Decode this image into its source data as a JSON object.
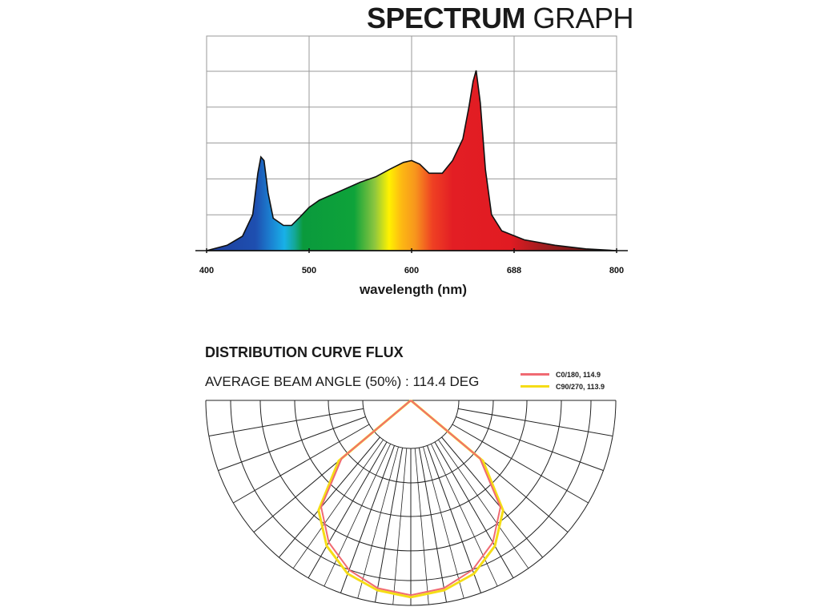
{
  "spectrum": {
    "title_bold": "SPECTRUM",
    "title_light": "GRAPH",
    "xlabel": "wavelength (nm)"
  },
  "distribution": {
    "title": "DISTRIBUTION CURVE FLUX",
    "subtitle": "AVERAGE BEAM ANGLE  (50%) : 114.4 DEG",
    "legend": [
      {
        "label": "C0/180, 114.9",
        "color": "#f06a72"
      },
      {
        "label": "C90/270, 113.9",
        "color": "#f5dd16"
      }
    ]
  },
  "chart_data": [
    {
      "type": "area",
      "title": "SPECTRUM GRAPH",
      "xlabel": "wavelength (nm)",
      "ylabel": "",
      "x_tick_labels": [
        "400",
        "500",
        "600",
        "688",
        "800"
      ],
      "xlim": [
        400,
        800
      ],
      "ylim": [
        0,
        1
      ],
      "grid": true,
      "series": [
        {
          "x": [
            400,
            420,
            435,
            445,
            450,
            453,
            456,
            460,
            465,
            475,
            483,
            490,
            500,
            510,
            530,
            550,
            565,
            578,
            592,
            600,
            608,
            617,
            630,
            640,
            650,
            656,
            660,
            663,
            667,
            672,
            678,
            688,
            710,
            740,
            770,
            800
          ],
          "values": [
            0.0,
            0.03,
            0.08,
            0.2,
            0.43,
            0.52,
            0.5,
            0.32,
            0.18,
            0.14,
            0.14,
            0.18,
            0.24,
            0.28,
            0.33,
            0.38,
            0.41,
            0.45,
            0.49,
            0.5,
            0.48,
            0.43,
            0.43,
            0.5,
            0.62,
            0.8,
            0.94,
            1.0,
            0.82,
            0.45,
            0.2,
            0.11,
            0.06,
            0.03,
            0.01,
            0.0
          ]
        }
      ]
    },
    {
      "type": "polar",
      "title": "DISTRIBUTION CURVE FLUX",
      "subtitle": "AVERAGE BEAM ANGLE  (50%) : 114.4 DEG",
      "grid": true,
      "angular_grid_step_deg": 10,
      "series": [
        {
          "name": "C0/180, 114.9",
          "color": "#f06a72",
          "angles_deg": [
            -90,
            -50,
            -40,
            -30,
            -20,
            -10,
            0,
            10,
            20,
            30,
            40,
            50,
            90
          ],
          "values": [
            0.0,
            0.44,
            0.68,
            0.8,
            0.88,
            0.93,
            0.95,
            0.93,
            0.88,
            0.8,
            0.68,
            0.44,
            0.0
          ]
        },
        {
          "name": "C90/270, 113.9",
          "color": "#f5dd16",
          "angles_deg": [
            -90,
            -50,
            -40,
            -30,
            -20,
            -10,
            0,
            10,
            20,
            30,
            40,
            50,
            90
          ],
          "values": [
            0.0,
            0.46,
            0.7,
            0.82,
            0.9,
            0.94,
            0.96,
            0.94,
            0.9,
            0.82,
            0.7,
            0.46,
            0.0
          ]
        }
      ]
    }
  ]
}
